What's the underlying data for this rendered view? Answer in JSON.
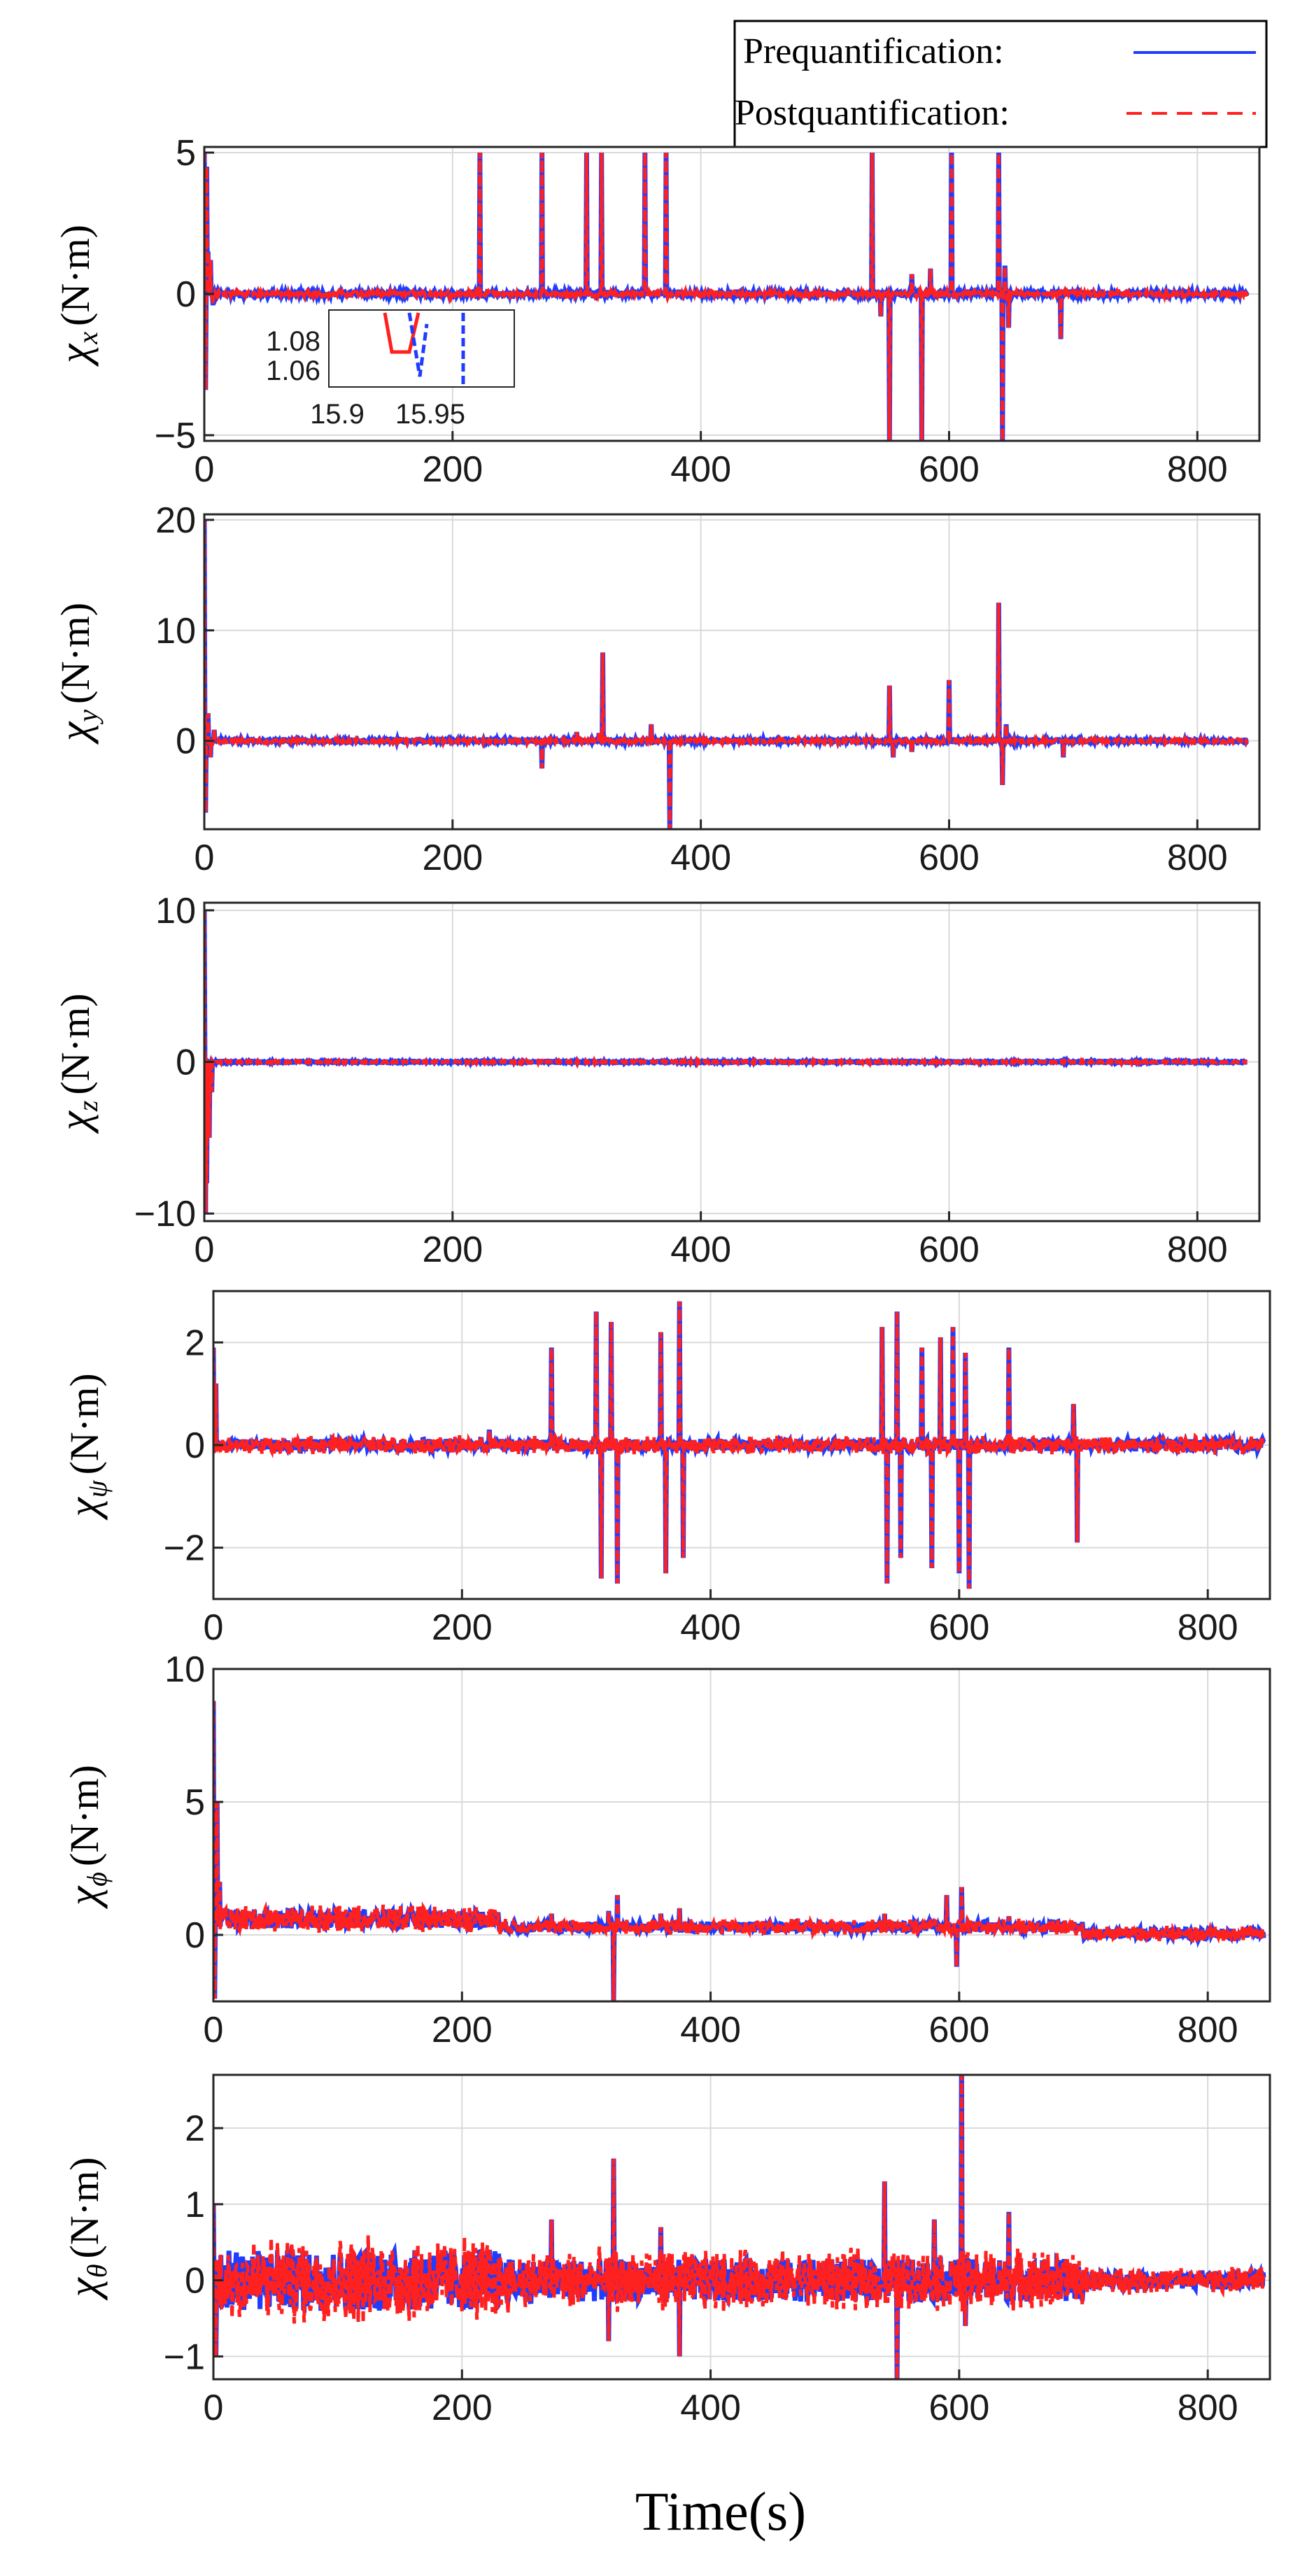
{
  "legend": {
    "entries": [
      {
        "label": "Prequantification:",
        "color": "#1f3cff",
        "style": "solid"
      },
      {
        "label": "Postquantification:",
        "color": "#ff2020",
        "style": "dashed"
      }
    ]
  },
  "xlabel": "Time(s)",
  "colors": {
    "pre": "#1f3cff",
    "post": "#ff2020",
    "grid": "#d9d9d9"
  },
  "chart_data": [
    {
      "type": "line",
      "id": "x",
      "ylabel": {
        "prefix": "χ",
        "sub": "x",
        "unit": "(N·m)"
      },
      "xlim": [
        0,
        850
      ],
      "ylim": [
        -5.2,
        5.2
      ],
      "xticks": [
        0,
        200,
        400,
        600,
        800
      ],
      "yticks": [
        -5,
        0,
        5
      ],
      "xticklabels": [
        "0",
        "200",
        "400",
        "600",
        "800"
      ],
      "yticklabels": [
        "−5",
        "0",
        "5"
      ],
      "grid": true,
      "spikes": [
        [
          0,
          5
        ],
        [
          1,
          -3.4
        ],
        [
          2,
          4.5
        ],
        [
          3,
          1.5
        ],
        [
          5,
          1.2
        ],
        [
          7,
          -0.4
        ],
        [
          222,
          5
        ],
        [
          272,
          5
        ],
        [
          308,
          5
        ],
        [
          320,
          5
        ],
        [
          355,
          5
        ],
        [
          372,
          5
        ],
        [
          538,
          5
        ],
        [
          545,
          -0.8
        ],
        [
          552,
          -5.2
        ],
        [
          570,
          0.7
        ],
        [
          578,
          -5.2
        ],
        [
          585,
          0.9
        ],
        [
          602,
          5
        ],
        [
          640,
          5
        ],
        [
          643,
          -5.2
        ],
        [
          645,
          1.0
        ],
        [
          648,
          -1.2
        ],
        [
          690,
          -1.6
        ]
      ],
      "inset": {
        "xticklabels": [
          "15.9",
          "15.95"
        ],
        "yticklabels": [
          "1.08",
          "1.06"
        ]
      }
    },
    {
      "type": "line",
      "id": "y",
      "ylabel": {
        "prefix": "χ",
        "sub": "y",
        "unit": "(N·m)"
      },
      "xlim": [
        0,
        850
      ],
      "ylim": [
        -8,
        20.5
      ],
      "xticks": [
        0,
        200,
        400,
        600,
        800
      ],
      "yticks": [
        0,
        10,
        20
      ],
      "xticklabels": [
        "0",
        "200",
        "400",
        "600",
        "800"
      ],
      "yticklabels": [
        "0",
        "10",
        "20"
      ],
      "grid": true,
      "spikes": [
        [
          0,
          20
        ],
        [
          1,
          -6.5
        ],
        [
          3,
          2.5
        ],
        [
          5,
          -1.5
        ],
        [
          8,
          1.0
        ],
        [
          272,
          -2.5
        ],
        [
          300,
          0.8
        ],
        [
          318,
          0.7
        ],
        [
          321,
          8
        ],
        [
          360,
          1.5
        ],
        [
          375,
          -8
        ],
        [
          552,
          5
        ],
        [
          555,
          -1.5
        ],
        [
          570,
          -1.0
        ],
        [
          600,
          5.5
        ],
        [
          640,
          12.5
        ],
        [
          643,
          -4
        ],
        [
          646,
          1.5
        ],
        [
          692,
          -1.5
        ]
      ]
    },
    {
      "type": "line",
      "id": "z",
      "ylabel": {
        "prefix": "χ",
        "sub": "z",
        "unit": "(N·m)"
      },
      "xlim": [
        0,
        850
      ],
      "ylim": [
        -10.5,
        10.5
      ],
      "xticks": [
        0,
        200,
        400,
        600,
        800
      ],
      "yticks": [
        -10,
        0,
        10
      ],
      "xticklabels": [
        "0",
        "200",
        "400",
        "600",
        "800"
      ],
      "yticklabels": [
        "−10",
        "0",
        "10"
      ],
      "grid": true,
      "spikes": [
        [
          0,
          10
        ],
        [
          1,
          -10
        ],
        [
          2,
          -8
        ],
        [
          4,
          -5
        ],
        [
          6,
          -2
        ],
        [
          8,
          0
        ]
      ]
    },
    {
      "type": "line",
      "id": "psi",
      "ylabel": {
        "prefix": "χ",
        "sub": "ψ",
        "unit": "(N·m)"
      },
      "xlim": [
        0,
        850
      ],
      "ylim": [
        -3,
        3
      ],
      "xticks": [
        0,
        200,
        400,
        600,
        800
      ],
      "yticks": [
        -2,
        0,
        2
      ],
      "xticklabels": [
        "0",
        "200",
        "400",
        "600",
        "800"
      ],
      "yticklabels": [
        "−2",
        "0",
        "2"
      ],
      "grid": true,
      "spikes": [
        [
          0,
          1.9
        ],
        [
          2,
          1.2
        ],
        [
          222,
          0.3
        ],
        [
          272,
          1.9
        ],
        [
          308,
          2.6
        ],
        [
          312,
          -2.6
        ],
        [
          320,
          2.4
        ],
        [
          325,
          -2.7
        ],
        [
          360,
          2.2
        ],
        [
          364,
          -2.5
        ],
        [
          375,
          2.8
        ],
        [
          378,
          -2.2
        ],
        [
          538,
          2.3
        ],
        [
          542,
          -2.7
        ],
        [
          550,
          2.6
        ],
        [
          553,
          -2.2
        ],
        [
          570,
          1.9
        ],
        [
          578,
          -2.4
        ],
        [
          585,
          2.1
        ],
        [
          595,
          2.3
        ],
        [
          600,
          -2.5
        ],
        [
          605,
          1.8
        ],
        [
          608,
          -2.8
        ],
        [
          640,
          1.9
        ],
        [
          692,
          0.8
        ],
        [
          695,
          -1.9
        ]
      ]
    },
    {
      "type": "line",
      "id": "phi",
      "ylabel": {
        "prefix": "χ",
        "sub": "ϕ",
        "unit": "(N·m)"
      },
      "xlim": [
        0,
        850
      ],
      "ylim": [
        -2.5,
        10
      ],
      "xticks": [
        0,
        200,
        400,
        600,
        800
      ],
      "yticks": [
        0,
        5,
        10
      ],
      "xticklabels": [
        "0",
        "200",
        "400",
        "600",
        "800"
      ],
      "yticklabels": [
        "0",
        "5",
        "10"
      ],
      "grid": true,
      "spikes": [
        [
          0,
          8.8
        ],
        [
          1,
          -2.4
        ],
        [
          3,
          5
        ],
        [
          5,
          2
        ],
        [
          8,
          1.0
        ],
        [
          272,
          0.8
        ],
        [
          318,
          0.9
        ],
        [
          322,
          -2.5
        ],
        [
          325,
          1.5
        ],
        [
          360,
          0.8
        ],
        [
          375,
          1.0
        ],
        [
          540,
          0.8
        ],
        [
          590,
          1.5
        ],
        [
          598,
          -1.2
        ],
        [
          602,
          1.8
        ],
        [
          640,
          0.7
        ]
      ]
    },
    {
      "type": "line",
      "id": "theta",
      "ylabel": {
        "prefix": "χ",
        "sub": "θ",
        "unit": "(N·m)"
      },
      "xlim": [
        0,
        850
      ],
      "ylim": [
        -1.3,
        2.7
      ],
      "xticks": [
        0,
        200,
        400,
        600,
        800
      ],
      "yticks": [
        -1,
        0,
        1,
        2
      ],
      "xticklabels": [
        "0",
        "200",
        "400",
        "600",
        "800"
      ],
      "yticklabels": [
        "−1",
        "0",
        "1",
        "2"
      ],
      "grid": true,
      "spikes": [
        [
          0,
          1.0
        ],
        [
          2,
          -1.0
        ],
        [
          222,
          0.4
        ],
        [
          272,
          0.8
        ],
        [
          318,
          -0.8
        ],
        [
          322,
          1.6
        ],
        [
          360,
          0.7
        ],
        [
          375,
          -1.0
        ],
        [
          540,
          1.3
        ],
        [
          550,
          -1.3
        ],
        [
          580,
          0.8
        ],
        [
          602,
          2.7
        ],
        [
          605,
          -0.6
        ],
        [
          640,
          0.9
        ]
      ]
    }
  ]
}
